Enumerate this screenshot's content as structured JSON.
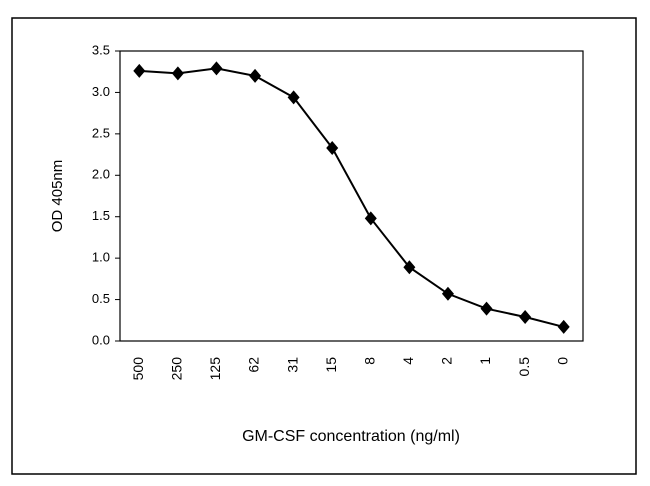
{
  "chart_data": {
    "type": "line",
    "x_label": "GM-CSF concentration (ng/ml)",
    "y_label": "OD 405nm",
    "categories": [
      "500",
      "250",
      "125",
      "62",
      "31",
      "15",
      "8",
      "4",
      "2",
      "1",
      "0.5",
      "0"
    ],
    "series": [
      {
        "color": "#000000",
        "values": [
          3.26,
          3.23,
          3.29,
          3.2,
          2.94,
          2.33,
          1.48,
          0.89,
          0.57,
          0.39,
          0.29,
          0.17
        ]
      }
    ],
    "ylim": [
      0,
      3.5
    ],
    "yticks": [
      {
        "value": 0,
        "label": "0.0"
      },
      0.5,
      {
        "value": 1,
        "label": "1.0"
      },
      1.5,
      {
        "value": 2,
        "label": "2.0"
      },
      2.5,
      {
        "value": 3,
        "label": "3.0"
      },
      3.5
    ],
    "grid": false
  }
}
